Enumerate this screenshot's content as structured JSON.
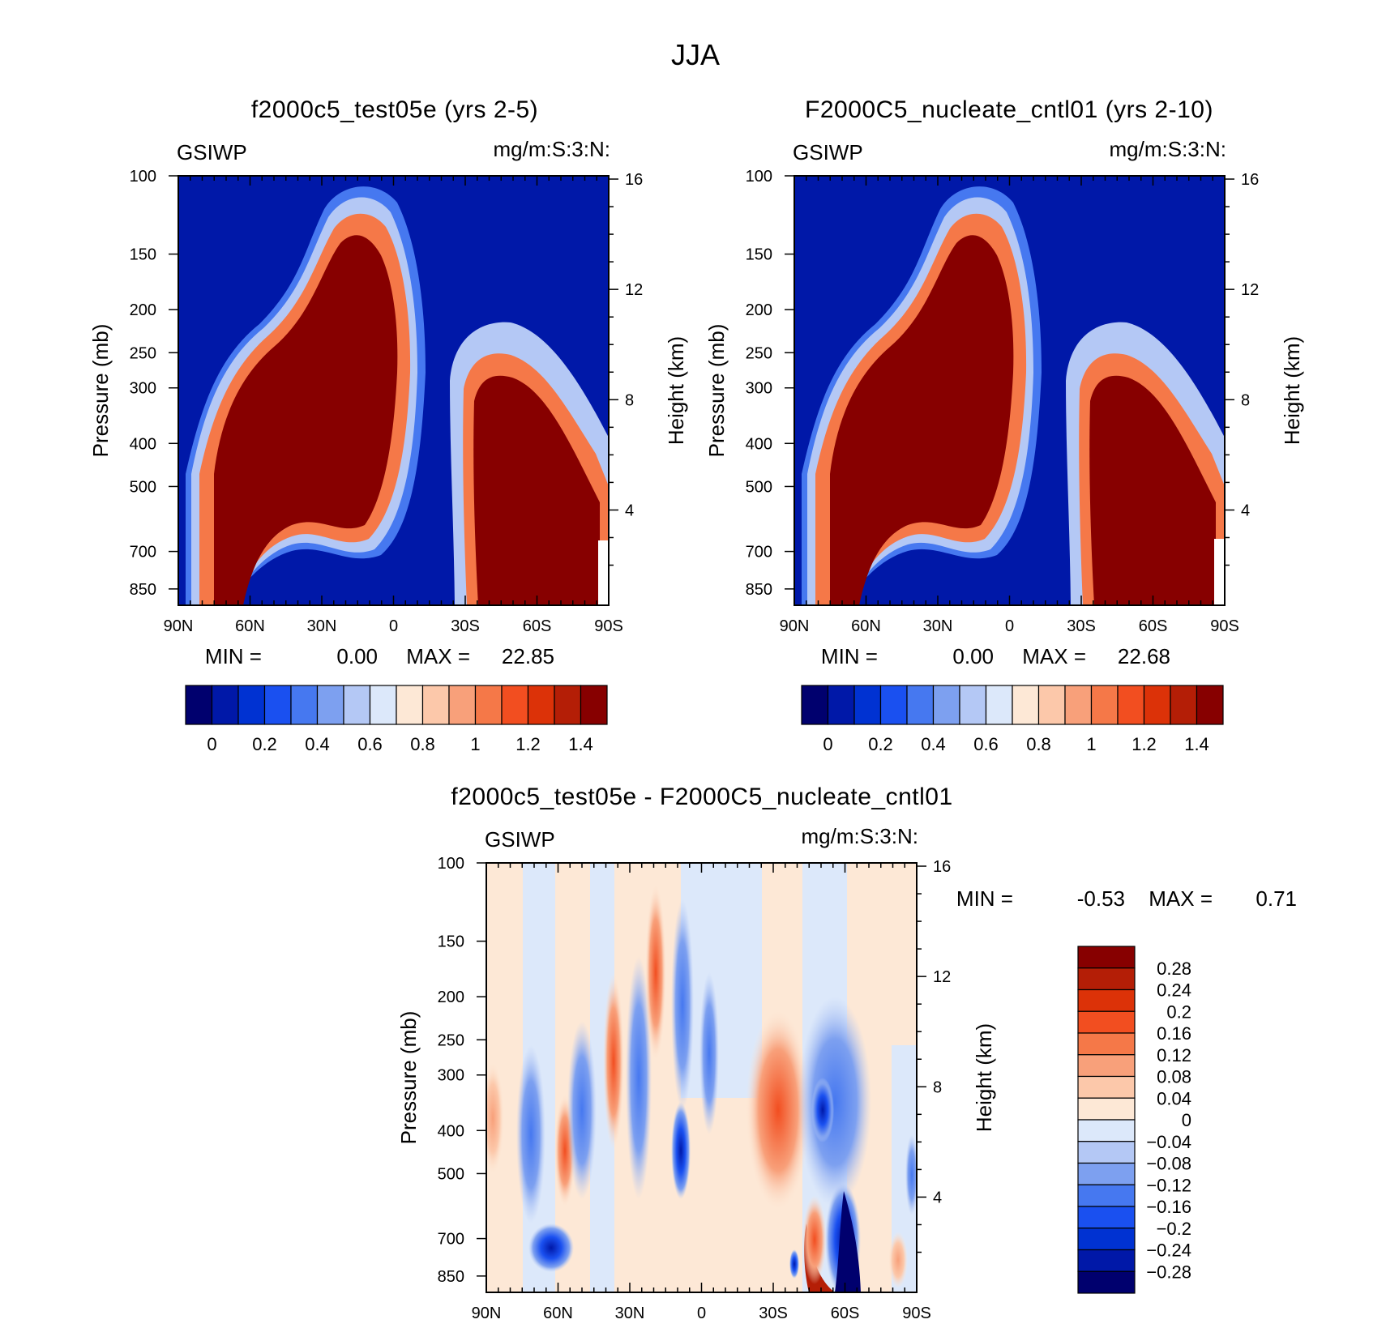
{
  "figure_title": "JJA",
  "chart_data": [
    {
      "type": "heatmap",
      "id": "panel1",
      "title": "f2000c5_test05e (yrs 2-5)",
      "variable": "GSIWP",
      "units": "mg/m:S:3:N:",
      "ylabel": "Pressure (mb)",
      "y2label": "Height (km)",
      "x_ticks": [
        "90N",
        "60N",
        "30N",
        "0",
        "30S",
        "60S",
        "90S"
      ],
      "y_ticks": [
        "100",
        "150",
        "200",
        "250",
        "300",
        "400",
        "500",
        "700",
        "850"
      ],
      "y_tick_values": [
        100,
        150,
        200,
        250,
        300,
        400,
        500,
        700,
        850
      ],
      "y2_ticks": [
        "16",
        "12",
        "8",
        "4"
      ],
      "y2_tick_values": [
        16,
        12,
        8,
        4
      ],
      "xlim": [
        90,
        -90
      ],
      "ylim": [
        100,
        925
      ],
      "min_label": "MIN =",
      "min_value": "0.00",
      "max_label": "MAX =",
      "max_value": "22.85",
      "colorbar_levels": [
        "0",
        "0.2",
        "0.4",
        "0.6",
        "0.8",
        "1",
        "1.2",
        "1.4"
      ],
      "colorbar_colors": [
        "#00006e",
        "#0018a8",
        "#0032d2",
        "#1a50f0",
        "#4678f0",
        "#7da0f0",
        "#b4c8f5",
        "#dce8fa",
        "#fde8d6",
        "#fcc8aa",
        "#f8a07a",
        "#f57848",
        "#f24e20",
        "#dc3208",
        "#b41e06",
        "#870000"
      ]
    },
    {
      "type": "heatmap",
      "id": "panel2",
      "title": "F2000C5_nucleate_cntl01 (yrs 2-10)",
      "variable": "GSIWP",
      "units": "mg/m:S:3:N:",
      "ylabel": "Pressure (mb)",
      "y2label": "Height (km)",
      "x_ticks": [
        "90N",
        "60N",
        "30N",
        "0",
        "30S",
        "60S",
        "90S"
      ],
      "y_ticks": [
        "100",
        "150",
        "200",
        "250",
        "300",
        "400",
        "500",
        "700",
        "850"
      ],
      "y_tick_values": [
        100,
        150,
        200,
        250,
        300,
        400,
        500,
        700,
        850
      ],
      "y2_ticks": [
        "16",
        "12",
        "8",
        "4"
      ],
      "y2_tick_values": [
        16,
        12,
        8,
        4
      ],
      "xlim": [
        90,
        -90
      ],
      "ylim": [
        100,
        925
      ],
      "min_label": "MIN =",
      "min_value": "0.00",
      "max_label": "MAX =",
      "max_value": "22.68",
      "colorbar_levels": [
        "0",
        "0.2",
        "0.4",
        "0.6",
        "0.8",
        "1",
        "1.2",
        "1.4"
      ],
      "colorbar_colors": [
        "#00006e",
        "#0018a8",
        "#0032d2",
        "#1a50f0",
        "#4678f0",
        "#7da0f0",
        "#b4c8f5",
        "#dce8fa",
        "#fde8d6",
        "#fcc8aa",
        "#f8a07a",
        "#f57848",
        "#f24e20",
        "#dc3208",
        "#b41e06",
        "#870000"
      ]
    },
    {
      "type": "heatmap",
      "id": "panel3",
      "title": "f2000c5_test05e - F2000C5_nucleate_cntl01",
      "variable": "GSIWP",
      "units": "mg/m:S:3:N:",
      "ylabel": "Pressure (mb)",
      "y2label": "Height (km)",
      "x_ticks": [
        "90N",
        "60N",
        "30N",
        "0",
        "30S",
        "60S",
        "90S"
      ],
      "y_ticks": [
        "100",
        "150",
        "200",
        "250",
        "300",
        "400",
        "500",
        "700",
        "850"
      ],
      "y_tick_values": [
        100,
        150,
        200,
        250,
        300,
        400,
        500,
        700,
        850
      ],
      "y2_ticks": [
        "16",
        "12",
        "8",
        "4"
      ],
      "y2_tick_values": [
        16,
        12,
        8,
        4
      ],
      "xlim": [
        90,
        -90
      ],
      "ylim": [
        100,
        925
      ],
      "min_label": "MIN =",
      "min_value": "-0.53",
      "max_label": "MAX =",
      "max_value": "0.71",
      "colorbar_levels": [
        "0.28",
        "0.24",
        "0.2",
        "0.16",
        "0.12",
        "0.08",
        "0.04",
        "0",
        "-0.04",
        "-0.08",
        "-0.12",
        "-0.16",
        "-0.2",
        "-0.24",
        "-0.28"
      ],
      "colorbar_colors": [
        "#870000",
        "#b41e06",
        "#dc3208",
        "#f24e20",
        "#f57848",
        "#f8a07a",
        "#fcc8aa",
        "#fde8d6",
        "#dce8fa",
        "#b4c8f5",
        "#7da0f0",
        "#4678f0",
        "#1a50f0",
        "#0032d2",
        "#0018a8",
        "#00006e"
      ]
    }
  ]
}
